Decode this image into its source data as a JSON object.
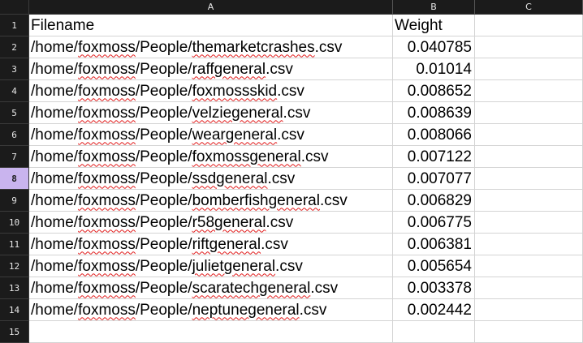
{
  "columns": [
    "",
    "A",
    "B",
    "C"
  ],
  "active_row": 8,
  "rows": [
    {
      "num": "1",
      "filename": "Filename",
      "weight": "Weight",
      "c": "",
      "header_row": true
    },
    {
      "num": "2",
      "prefix": "/home/",
      "user": "foxmoss",
      "mid": "/People/",
      "file": "themarketcrashes",
      "ext": ".csv",
      "weight": "0.040785",
      "c": ""
    },
    {
      "num": "3",
      "prefix": "/home/",
      "user": "foxmoss",
      "mid": "/People/",
      "file": "raffgeneral",
      "ext": ".csv",
      "weight": "0.01014",
      "c": ""
    },
    {
      "num": "4",
      "prefix": "/home/",
      "user": "foxmoss",
      "mid": "/People/",
      "file": "foxmossskid",
      "ext": ".csv",
      "weight": "0.008652",
      "c": ""
    },
    {
      "num": "5",
      "prefix": "/home/",
      "user": "foxmoss",
      "mid": "/People/",
      "file": "velziegeneral",
      "ext": ".csv",
      "weight": "0.008639",
      "c": ""
    },
    {
      "num": "6",
      "prefix": "/home/",
      "user": "foxmoss",
      "mid": "/People/",
      "file": "weargeneral",
      "ext": ".csv",
      "weight": "0.008066",
      "c": ""
    },
    {
      "num": "7",
      "prefix": "/home/",
      "user": "foxmoss",
      "mid": "/People/",
      "file": "foxmossgeneral",
      "ext": ".csv",
      "weight": "0.007122",
      "c": ""
    },
    {
      "num": "8",
      "prefix": "/home/",
      "user": "foxmoss",
      "mid": "/People/",
      "file": "ssdgeneral",
      "ext": ".csv",
      "weight": "0.007077",
      "c": ""
    },
    {
      "num": "9",
      "prefix": "/home/",
      "user": "foxmoss",
      "mid": "/People/",
      "file": "bomberfishgeneral",
      "ext": ".csv",
      "weight": "0.006829",
      "c": ""
    },
    {
      "num": "10",
      "prefix": "/home/",
      "user": "foxmoss",
      "mid": "/People/",
      "file": "r58general",
      "ext": ".csv",
      "weight": "0.006775",
      "c": ""
    },
    {
      "num": "11",
      "prefix": "/home/",
      "user": "foxmoss",
      "mid": "/People/",
      "file": "riftgeneral",
      "ext": ".csv",
      "weight": "0.006381",
      "c": ""
    },
    {
      "num": "12",
      "prefix": "/home/",
      "user": "foxmoss",
      "mid": "/People/",
      "file": "julietgeneral",
      "ext": ".csv",
      "weight": "0.005654",
      "c": ""
    },
    {
      "num": "13",
      "prefix": "/home/",
      "user": "foxmoss",
      "mid": "/People/",
      "file": "scaratechgeneral",
      "ext": ".csv",
      "weight": "0.003378",
      "c": ""
    },
    {
      "num": "14",
      "prefix": "/home/",
      "user": "foxmoss",
      "mid": "/People/",
      "file": "neptunegeneral",
      "ext": ".csv",
      "weight": "0.002442",
      "c": ""
    },
    {
      "num": "15",
      "filename": "",
      "weight": "",
      "c": "",
      "empty": true
    }
  ],
  "colors": {
    "header_bg": "#1b1b1b",
    "header_text": "#e6e6e6",
    "active_row_bg": "#c9b4ee",
    "gridline": "#d4d4d4",
    "spellcheck": "#e21b1b"
  }
}
